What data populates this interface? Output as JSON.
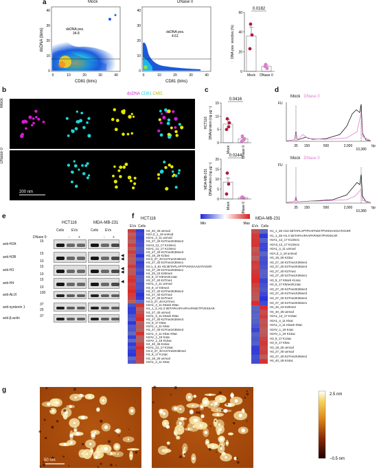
{
  "panels": [
    "a",
    "b",
    "c",
    "d",
    "e",
    "f",
    "g"
  ],
  "panel_a": {
    "flow_mock": {
      "title": "Mock",
      "xlabel": "CD81 (bins)",
      "ylabel": "dsDNA (bins)",
      "gate_label": "dsDNA pos.",
      "gate_value": "34.8",
      "xticks": [
        "0",
        "10",
        "20",
        "30",
        "40"
      ],
      "yticks": [
        "0",
        "10",
        "20",
        "30",
        "40"
      ]
    },
    "flow_dnase": {
      "title": "DNase 0",
      "xlabel": "CD81 (bins)",
      "gate_label": "dsDNA pos.",
      "gate_value": "4.61",
      "xticks": [
        "0",
        "10",
        "20",
        "30",
        "40"
      ],
      "yticks": [
        "0",
        "10",
        "20",
        "30",
        "40"
      ]
    }
  },
  "panel_b": {
    "legend": [
      "dsDNA",
      "CD81",
      "CMG"
    ],
    "legend_colors": [
      "#d61ad6",
      "#1fd6d6",
      "#e6e600"
    ],
    "row_labels": [
      "Mock",
      "DNase 0"
    ],
    "scalebar": "200 nm"
  },
  "panel_d": {
    "legend": [
      "Mock",
      "DNase 0"
    ],
    "legend_colors": [
      "#111111",
      "#e07ad0"
    ],
    "ylabel": "FU",
    "xticks": [
      "35",
      "150",
      "500",
      "2,000",
      "10,380",
      "bp"
    ],
    "top_yticks": [
      "",
      "",
      ""
    ],
    "bottom_yticks": [
      "",
      "",
      ""
    ]
  },
  "panel_e": {
    "groups": [
      "HCT116",
      "MDA-MB-231"
    ],
    "col_labels": [
      "Cells",
      "EVs",
      "Cells",
      "EVs"
    ],
    "dnase_label": "DNase 0:",
    "dnase_marks": [
      "-",
      "+",
      "-",
      "+"
    ],
    "blots": [
      {
        "label": "anti-H2A",
        "markers": [
          "15"
        ]
      },
      {
        "label": "anti-H2B",
        "markers": [
          "15",
          "10"
        ]
      },
      {
        "label": "anti-H3",
        "markers": [
          "15",
          "10"
        ]
      },
      {
        "label": "anti-H4",
        "markers": [
          "15",
          "10"
        ]
      },
      {
        "label": "anti-ALIX",
        "markers": [
          "100"
        ]
      },
      {
        "label": "anti-syntenin 1",
        "markers": [
          "37",
          "25"
        ]
      },
      {
        "label": "anti-β-actin",
        "markers": [
          "37"
        ]
      }
    ]
  },
  "panel_f": {
    "scale_min": "Min",
    "scale_max": "Max",
    "left": {
      "group": "HCT116",
      "cols": [
        "EVs",
        "Cells"
      ],
      "rows": [
        "H4_40_45 unmod",
        "H2A.Z_1_19 unmod",
        "H2A1_4_11 unmod",
        "H3_27_40 K27me2K36me2",
        "H2A3_12_17 K13me1",
        "H2A1_12_17 K13me1",
        "H3_27_40 K27me3K36me3",
        "H3_18_26 K23ac",
        "H3.3_27_40 K27me1K36me2",
        "H3_27_40 K27me1K36me1",
        "H3.1_3_81 H3.3ETAPLAPTPVKKKAAGATAGKR",
        "H3_27_40 K27me2K36me1",
        "H4_20_23 K20me3",
        "H3_9_17 K9me2K14ac",
        "H3_27_40 K27me1",
        "H2A1_4_11 unmod",
        "H3_9_17 K9me3",
        "H3_27_40 K27me3K36me2",
        "H3_27_40 K27me2",
        "H3_27_40 K27me3",
        "H3.3_27_40 K27me1",
        "H2A1_4_11 K5ack K9ac",
        "H1_1_3_H1.3 SETAPAAPAAPAAPAEKTPVKKKAR",
        "H3_27_40 unmod",
        "H2A1_4_11 K5ack K9ac",
        "H3_27_40 K27me2K36me3",
        "H3_9_17 K9ac",
        "H2A1_4_11 K5ac",
        "H3_27_40 K27me1K36me3",
        "H2A1_4_11 K5ac K9ac",
        "H2AV_1_19 K4ac",
        "H2AV_1_19 K15ac",
        "H4_40_45 K44ac",
        "H2A1_12_17 K15ac",
        "H3.3_27_40 K27me2K36me2",
        "H3_9_17 K14ac",
        "H3_18_26 unmod",
        "H2A1_4_11 K5ac"
      ]
    },
    "right": {
      "group": "MDA-MB-231",
      "cols": [
        "EVs",
        "Cells"
      ],
      "rows": [
        "H1_1_3S H13 SETAPLAPTPAAPAEKTPVKKKAKGATAGKR",
        "H1_1_3S H1.4 SETAPAAPAAPAPAEKTPVKKKAR",
        "H2A1_12_17 K13me1",
        "H2A3_12_17 K13me1",
        "H2A1_4_11 unmod",
        "H2A.Z_1_19 unmod",
        "H3_18_26 K23ac",
        "H3_27_40 K27me1K36me2",
        "H3_27_40 K27me2K36me3",
        "H3_27_40 K27me2",
        "H3_27_40 K27me1K36me1",
        "H3_9_17 K9ack K14ac",
        "H3_9_17 K9me2K14ac",
        "H3_27_40 K27me3K36me3",
        "H3_27_40 K27me1K36me3",
        "H3_27_40 K27me3K36me2",
        "H3_27_40 K27me2K36me1",
        "H4_20_23 K20me3",
        "H4_40_45 unmod",
        "H2A1_12_17 K15ac",
        "H2A1_4_11 K5ac",
        "H2A1_4_11 K5ack K9ac",
        "H2AV_1_19 K4ac",
        "H2AV_1_19 K15ac",
        "H3_9_17 K14ac",
        "H3_9_17 K9ac",
        "H3_18_26 unmod",
        "H3_27_40 unmod",
        "H3_27_40 K27me2K36me2",
        "H4_40_45 K44ac"
      ]
    }
  },
  "panel_g": {
    "scalebar": "50 nm",
    "colorbar_top": "2.5 nm",
    "colorbar_bottom": "−0.5 nm"
  },
  "chart_data": [
    {
      "type": "bar",
      "title": "",
      "ylabel": "DNA pos. vesicles (%)",
      "categories": [
        "Mock",
        "DNase 0"
      ],
      "values": [
        36,
        5
      ],
      "points": [
        [
          48,
          37,
          23
        ],
        [
          7,
          3,
          5
        ]
      ],
      "ylim": [
        0,
        60
      ],
      "yticks": [
        "0",
        "20",
        "40",
        "60"
      ],
      "pvalue": "0.0182"
    },
    {
      "type": "bar",
      "title": "",
      "ylabel": "DNA/protein (ng μg⁻¹)",
      "group": "HCT116",
      "categories": [
        "Mock",
        "DNase 0"
      ],
      "values": [
        7,
        1.5
      ],
      "points": [
        [
          9,
          6,
          5,
          7.5
        ],
        [
          2.5,
          1,
          0.5,
          1.5
        ]
      ],
      "ylim": [
        0,
        15
      ],
      "yticks": [
        "0",
        "5",
        "10",
        "15"
      ],
      "pvalue": "0.0416"
    },
    {
      "type": "bar",
      "title": "",
      "ylabel": "DNA/protein (ng μg⁻¹)",
      "group": "MDA-MB-231",
      "categories": [
        "Mock",
        "DNase 0"
      ],
      "values": [
        8.5,
        0.7
      ],
      "points": [
        [
          13,
          7.5,
          2.5
        ],
        [
          1,
          0.5,
          0.8
        ]
      ],
      "ylim": [
        0,
        20
      ],
      "yticks": [
        "0",
        "5",
        "10",
        "15",
        "20"
      ],
      "pvalue": "0.0244"
    }
  ]
}
